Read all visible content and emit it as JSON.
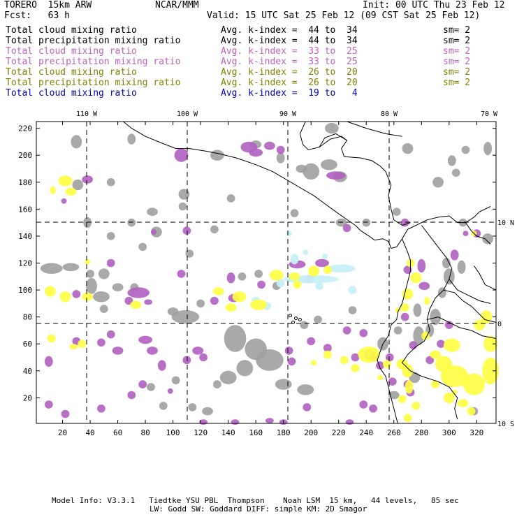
{
  "header": {
    "model": "TORERO  15km ARW",
    "org": "NCAR/MMM",
    "init": "Init: 00 UTC Thu 23 Feb 12",
    "fcst": "Fcst:   63 h",
    "valid": "Valid: 15 UTC Sat 25 Feb 12 (09 CST Sat 25 Feb 12)"
  },
  "legend": [
    {
      "field": "Total cloud mixing ratio",
      "kindex": "Avg. k-index =  44 to  34",
      "sm": "sm= 2",
      "color": "#000000"
    },
    {
      "field": "Total precipitation mixing ratio",
      "kindex": "Avg. k-index =  44 to  34",
      "sm": "sm= 2",
      "color": "#000000"
    },
    {
      "field": "Total cloud mixing ratio",
      "kindex": "Avg. k-index =  33 to  25",
      "sm": "sm= 2",
      "color": "#c060c0"
    },
    {
      "field": "Total precipitation mixing ratio",
      "kindex": "Avg. k-index =  33 to  25",
      "sm": "sm= 2",
      "color": "#c060c0"
    },
    {
      "field": "Total cloud mixing ratio",
      "kindex": "Avg. k-index =  26 to  20",
      "sm": "sm= 2",
      "color": "#808000"
    },
    {
      "field": "Total precipitation mixing ratio",
      "kindex": "Avg. k-index =  26 to  20",
      "sm": "sm= 2",
      "color": "#808000"
    },
    {
      "field": "Total cloud mixing ratio",
      "kindex": "Avg. k-index =  19 to   4",
      "sm": "",
      "color": "#0000c0"
    }
  ],
  "map": {
    "lon_labels": [
      "110 W",
      "100 W",
      "90 W",
      "80 W",
      "70 W"
    ],
    "lat_labels": [
      "10 N",
      "0",
      "10 S"
    ],
    "x_ticks": [
      "20",
      "40",
      "60",
      "80",
      "100",
      "120",
      "140",
      "160",
      "180",
      "200",
      "220",
      "240",
      "260",
      "280",
      "300",
      "320"
    ],
    "y_ticks": [
      "220",
      "200",
      "180",
      "160",
      "140",
      "120",
      "100",
      "80",
      "60",
      "40",
      "20"
    ],
    "x_range": [
      1,
      334
    ],
    "y_range": [
      1,
      225
    ],
    "colors": {
      "gray": "#a0a0a0",
      "purple": "#b060c0",
      "yellow": "#ffff40",
      "cyan": "#c8f0f8",
      "coast": "#000000"
    }
  },
  "footer": {
    "line1": "Model Info: V3.3.1   Tiedtke YSU PBL  Thompson    Noah LSM  15 km,   44 levels,   85 sec",
    "line2": "LW: Godd SW: Goddard DIFF: simple KM: 2D Smagor"
  }
}
